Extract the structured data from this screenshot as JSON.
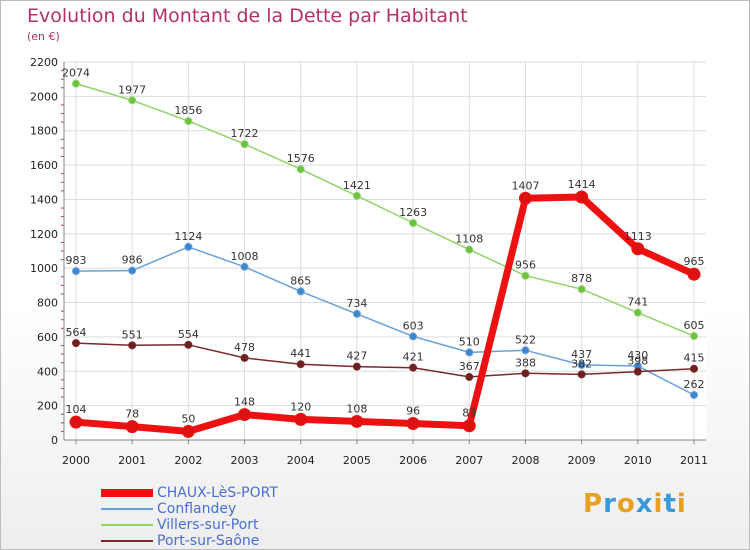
{
  "header": {
    "title": "Evolution du Montant de la Dette par Habitant",
    "subtitle": "(en €)"
  },
  "brand": {
    "text": "Proxiti",
    "colors": [
      "#e8a020",
      "#3a9ad9",
      "#e8a020",
      "#3a9ad9",
      "#e8a020",
      "#3a9ad9",
      "#e8a020"
    ]
  },
  "chart_data": {
    "type": "line",
    "x": [
      "2000",
      "2001",
      "2002",
      "2003",
      "2004",
      "2005",
      "2006",
      "2007",
      "2008",
      "2009",
      "2010",
      "2011"
    ],
    "ylim": [
      0,
      2200
    ],
    "yticks": [
      0,
      200,
      400,
      600,
      800,
      1000,
      1200,
      1400,
      1600,
      1800,
      2000,
      2200
    ],
    "grid": true,
    "legend_position": "bottom-left",
    "series": [
      {
        "name": "CHAUX-LèS-PORT",
        "values": [
          104,
          78,
          50,
          148,
          120,
          108,
          96,
          83,
          1407,
          1414,
          1113,
          965
        ],
        "labels": [
          "104",
          "78",
          "50",
          "148",
          "120",
          "108",
          "96",
          "83",
          "1407",
          "1414",
          "1113",
          "965"
        ],
        "color": "#ee1111",
        "marker": "#dd1111",
        "width": 7,
        "radius": 6
      },
      {
        "name": "Conflandey",
        "values": [
          983,
          986,
          1124,
          1008,
          865,
          734,
          603,
          510,
          522,
          437,
          430,
          262
        ],
        "labels": [
          "983",
          "986",
          "1124",
          "1008",
          "865",
          "734",
          "603",
          "510",
          "522",
          "437",
          "430",
          "262"
        ],
        "color": "#6aa0d8",
        "marker": "#3d86cc",
        "width": 1.5,
        "radius": 3.5
      },
      {
        "name": "Villers-sur-Port",
        "values": [
          2074,
          1977,
          1856,
          1722,
          1576,
          1421,
          1263,
          1108,
          956,
          878,
          741,
          605
        ],
        "labels": [
          "2074",
          "1977",
          "1856",
          "1722",
          "1576",
          "1421",
          "1263",
          "1108",
          "956",
          "878",
          "741",
          "605"
        ],
        "color": "#8fd46a",
        "marker": "#6cc23c",
        "width": 1.5,
        "radius": 3.5
      },
      {
        "name": "Port-sur-Saône",
        "values": [
          564,
          551,
          554,
          478,
          441,
          427,
          421,
          367,
          388,
          382,
          398,
          415
        ],
        "labels": [
          "564",
          "551",
          "554",
          "478",
          "441",
          "427",
          "421",
          "367",
          "388",
          "382",
          "398",
          "415"
        ],
        "color": "#7a2a2a",
        "marker": "#6e1f1f",
        "width": 1.5,
        "radius": 3.5
      }
    ]
  }
}
